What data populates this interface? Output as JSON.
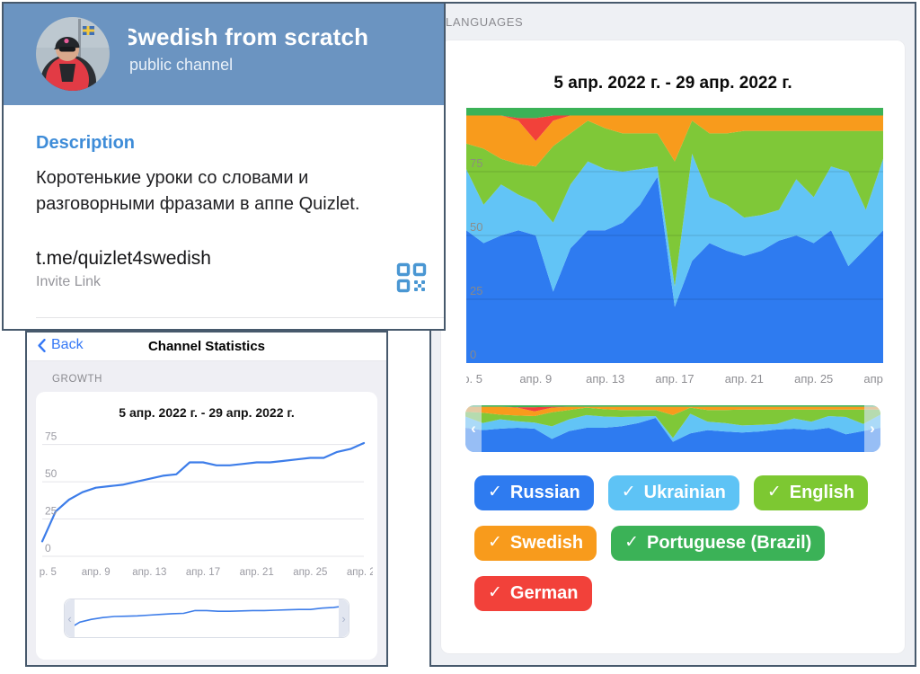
{
  "channel_card": {
    "title": "Swedish from scratch",
    "subtitle": "public channel",
    "description_label": "Description",
    "description_text": "Коротенькие уроки со словами и разговорными фразами в аппе Quizlet.",
    "invite_link": "t.me/quizlet4swedish",
    "invite_link_label": "Invite Link"
  },
  "stats_panel": {
    "back_label": "Back",
    "title": "Channel Statistics",
    "section_label": "GROWTH"
  },
  "languages_panel": {
    "section_label": "LANGUAGES",
    "check_glyph": "✓",
    "chips": [
      {
        "label": "Russian",
        "color": "#2e7bf0",
        "checked": true
      },
      {
        "label": "Ukrainian",
        "color": "#5ec3f5",
        "checked": true
      },
      {
        "label": "English",
        "color": "#7dc832",
        "checked": true
      },
      {
        "label": "Swedish",
        "color": "#f89b1c",
        "checked": true
      },
      {
        "label": "Portuguese (Brazil)",
        "color": "#3bb257",
        "checked": true
      },
      {
        "label": "German",
        "color": "#f2413a",
        "checked": true
      }
    ]
  },
  "colors": {
    "panel_border": "#47596c",
    "header_blue": "#6b94c1",
    "accent_blue": "#3478f6",
    "line_blue": "#3d7de9",
    "section_gray": "#8a8a8f",
    "axis_gray": "#9b9ba3"
  },
  "chart_data": [
    {
      "id": "growth",
      "type": "line",
      "title": "5 апр. 2022 г. - 29 апр. 2022 г.",
      "xlabel": "",
      "ylabel": "",
      "x_days": [
        5,
        6,
        7,
        8,
        9,
        10,
        11,
        12,
        13,
        14,
        15,
        16,
        17,
        18,
        19,
        20,
        21,
        22,
        23,
        24,
        25,
        26,
        27,
        28,
        29
      ],
      "x_tick_labels": [
        "апр. 5",
        "апр. 9",
        "апр. 13",
        "апр. 17",
        "апр. 21",
        "апр. 25",
        "апр. 29"
      ],
      "yticks": [
        0,
        25,
        50,
        75
      ],
      "ylim": [
        0,
        82
      ],
      "grid": true,
      "legend_position": "none",
      "line_color": "#3d7de9",
      "values": [
        10,
        30,
        38,
        43,
        46,
        47,
        48,
        50,
        52,
        54,
        55,
        63,
        63,
        61,
        61,
        62,
        63,
        63,
        64,
        65,
        66,
        66,
        70,
        72,
        76
      ]
    },
    {
      "id": "languages",
      "type": "area",
      "subtype": "stacked_percent",
      "title": "5 апр. 2022 г. - 29 апр. 2022 г.",
      "xlabel": "",
      "ylabel": "",
      "x_days": [
        5,
        6,
        7,
        8,
        9,
        10,
        11,
        12,
        13,
        14,
        15,
        16,
        17,
        18,
        19,
        20,
        21,
        22,
        23,
        24,
        25,
        26,
        27,
        28,
        29
      ],
      "x_tick_labels": [
        "апр. 5",
        "апр. 9",
        "апр. 13",
        "апр. 17",
        "апр. 21",
        "апр. 25",
        "апр. 29"
      ],
      "yticks": [
        0,
        25,
        50,
        75
      ],
      "ylim": [
        0,
        100
      ],
      "grid": true,
      "legend_position": "bottom-chips",
      "series": [
        {
          "name": "Russian",
          "color": "#2e7bf0",
          "values": [
            52,
            47,
            50,
            52,
            50,
            28,
            45,
            52,
            52,
            55,
            62,
            73,
            22,
            40,
            47,
            44,
            42,
            44,
            48,
            50,
            47,
            52,
            38,
            45,
            52
          ]
        },
        {
          "name": "Ukrainian",
          "color": "#62c4f6",
          "values": [
            24,
            15,
            20,
            14,
            13,
            27,
            25,
            27,
            24,
            20,
            14,
            4,
            8,
            42,
            18,
            18,
            15,
            14,
            12,
            22,
            18,
            25,
            37,
            15,
            28
          ]
        },
        {
          "name": "English",
          "color": "#7fc838",
          "values": [
            10,
            22,
            10,
            12,
            14,
            30,
            20,
            16,
            16,
            15,
            14,
            13,
            49,
            13,
            25,
            28,
            34,
            33,
            31,
            19,
            26,
            14,
            16,
            31,
            11
          ]
        },
        {
          "name": "Swedish",
          "color": "#f89b1c",
          "values": [
            11,
            13,
            17,
            17,
            10,
            10,
            7,
            2,
            5,
            7,
            7,
            7,
            18,
            2,
            7,
            7,
            6,
            6,
            6,
            6,
            6,
            6,
            6,
            6,
            6
          ]
        },
        {
          "name": "German",
          "color": "#f2413a",
          "values": [
            0,
            0,
            0,
            1,
            9,
            2,
            0,
            0,
            0,
            0,
            0,
            0,
            0,
            0,
            0,
            0,
            0,
            0,
            0,
            0,
            0,
            0,
            0,
            0,
            0
          ]
        },
        {
          "name": "Portuguese (Brazil)",
          "color": "#3bb257",
          "values": [
            3,
            3,
            3,
            4,
            4,
            3,
            3,
            3,
            3,
            3,
            3,
            3,
            3,
            3,
            3,
            3,
            3,
            3,
            3,
            3,
            3,
            3,
            3,
            3,
            3
          ]
        }
      ]
    }
  ]
}
